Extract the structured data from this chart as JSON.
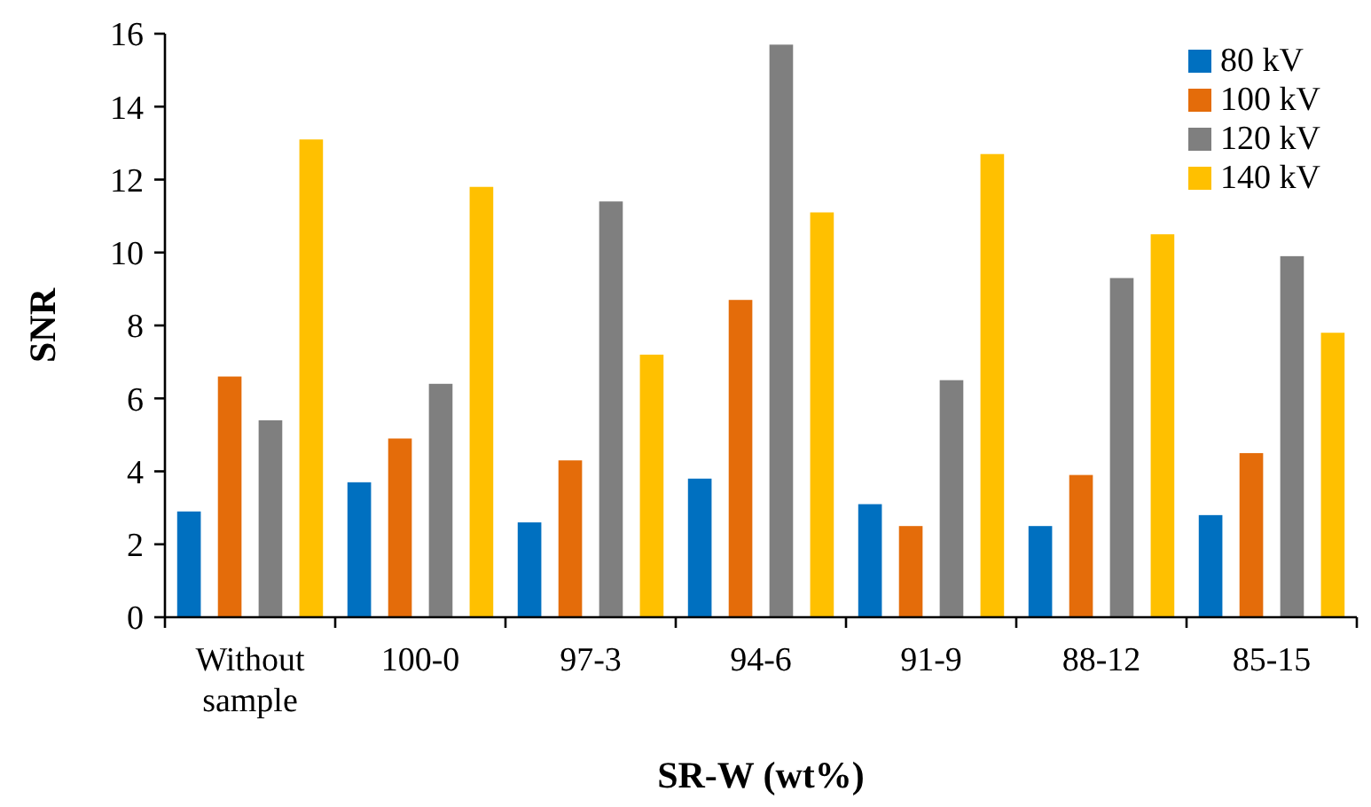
{
  "chart_data": {
    "type": "bar",
    "xlabel": "SR-W (wt%)",
    "ylabel": "SNR",
    "categories": [
      "Without sample",
      "100-0",
      "97-3",
      "94-6",
      "91-9",
      "88-12",
      "85-15"
    ],
    "series": [
      {
        "name": "80 kV",
        "color": "#0070c0",
        "values": [
          2.9,
          3.7,
          2.6,
          3.8,
          3.1,
          2.5,
          2.8
        ]
      },
      {
        "name": "100 kV",
        "color": "#e46c0a",
        "values": [
          6.6,
          4.9,
          4.3,
          8.7,
          2.5,
          3.9,
          4.5
        ]
      },
      {
        "name": "120 kV",
        "color": "#7f7f7f",
        "values": [
          5.4,
          6.4,
          11.4,
          15.7,
          6.5,
          9.3,
          9.9
        ]
      },
      {
        "name": "140 kV",
        "color": "#ffc000",
        "values": [
          13.1,
          11.8,
          7.2,
          11.1,
          12.7,
          10.5,
          7.8
        ]
      }
    ],
    "ylim": [
      0,
      16
    ],
    "yticks": [
      0,
      2,
      4,
      6,
      8,
      10,
      12,
      14,
      16
    ],
    "grid": false,
    "legend": "top right"
  }
}
